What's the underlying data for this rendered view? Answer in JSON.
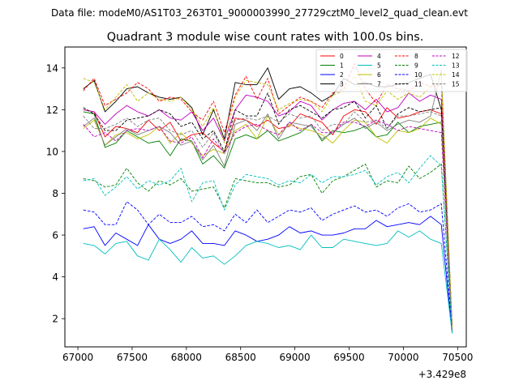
{
  "suptitle": "Data file: modeM0/AS1T03_263T01_9000003990_27729cztM0_level2_quad_clean.evt",
  "chart_data": {
    "type": "line",
    "title": "Quadrant 3 module wise count rates with 100.0s bins.",
    "xlabel": "",
    "ylabel": "",
    "x_offset_label": "+3.429e8",
    "xlim": [
      66880,
      70580
    ],
    "ylim": [
      0.65,
      15.0
    ],
    "xticks": [
      67000,
      67500,
      68000,
      68500,
      69000,
      69500,
      70000,
      70500
    ],
    "yticks": [
      2,
      4,
      6,
      8,
      10,
      12,
      14
    ],
    "x": [
      67050,
      67150,
      67250,
      67350,
      67450,
      67550,
      67650,
      67750,
      67850,
      67950,
      68050,
      68150,
      68250,
      68350,
      68450,
      68550,
      68650,
      68750,
      68850,
      68950,
      69050,
      69150,
      69250,
      69350,
      69450,
      69550,
      69650,
      69750,
      69850,
      69950,
      70050,
      70150,
      70250,
      70350,
      70450
    ],
    "legend": {
      "position": "top-right",
      "columns": 4
    },
    "series": [
      {
        "name": "0",
        "color": "#ff0000",
        "dash": "solid",
        "values": [
          12.0,
          11.9,
          10.7,
          11.2,
          11.1,
          10.9,
          11.5,
          11.0,
          11.4,
          10.5,
          10.8,
          10.9,
          10.4,
          10.0,
          11.6,
          11.5,
          11.2,
          11.5,
          11.1,
          11.2,
          11.8,
          11.6,
          11.4,
          10.8,
          11.7,
          12.0,
          11.9,
          11.3,
          12.1,
          11.6,
          11.7,
          11.9,
          12.0,
          11.8,
          1.6
        ]
      },
      {
        "name": "1",
        "color": "#008000",
        "dash": "solid",
        "values": [
          11.9,
          11.8,
          10.2,
          10.4,
          11.0,
          10.7,
          10.4,
          10.5,
          9.8,
          10.6,
          10.5,
          9.4,
          9.8,
          9.2,
          10.6,
          10.8,
          10.6,
          11.0,
          10.5,
          10.7,
          10.9,
          11.3,
          10.5,
          11.0,
          10.9,
          11.0,
          11.2,
          10.7,
          10.8,
          11.4,
          10.9,
          11.2,
          11.3,
          11.4,
          1.4
        ]
      },
      {
        "name": "2",
        "color": "#0000ff",
        "dash": "solid",
        "values": [
          6.3,
          6.4,
          5.5,
          6.1,
          5.8,
          5.5,
          6.5,
          5.8,
          5.6,
          5.8,
          6.2,
          5.6,
          5.6,
          5.5,
          6.2,
          6.0,
          5.7,
          5.8,
          6.0,
          6.4,
          6.1,
          6.2,
          6.0,
          6.0,
          6.1,
          6.3,
          6.3,
          6.7,
          6.4,
          6.5,
          6.6,
          6.5,
          6.9,
          6.5,
          1.3
        ]
      },
      {
        "name": "3",
        "color": "#000000",
        "dash": "solid",
        "values": [
          13.0,
          13.4,
          11.9,
          12.4,
          13.0,
          13.1,
          12.8,
          12.6,
          12.5,
          12.6,
          12.1,
          10.8,
          12.0,
          10.6,
          13.3,
          13.2,
          13.2,
          14.0,
          12.5,
          13.0,
          13.1,
          12.8,
          12.4,
          12.7,
          13.5,
          13.2,
          13.3,
          13.1,
          13.1,
          13.2,
          13.3,
          13.5,
          13.7,
          12.0,
          1.5
        ]
      },
      {
        "name": "4",
        "color": "#bf00bf",
        "dash": "solid",
        "values": [
          12.0,
          11.9,
          11.3,
          11.8,
          12.2,
          11.9,
          11.7,
          12.0,
          11.6,
          11.5,
          11.9,
          11.0,
          11.6,
          10.5,
          12.0,
          12.7,
          12.6,
          12.4,
          11.7,
          11.9,
          12.4,
          12.2,
          11.5,
          12.0,
          12.3,
          12.4,
          12.0,
          12.5,
          11.9,
          12.1,
          12.8,
          12.4,
          12.7,
          12.5,
          1.5
        ]
      },
      {
        "name": "5",
        "color": "#00bfbf",
        "dash": "solid",
        "values": [
          5.6,
          5.5,
          5.1,
          5.6,
          5.7,
          5.0,
          4.8,
          5.8,
          5.3,
          4.7,
          5.4,
          4.9,
          5.0,
          4.6,
          5.0,
          5.5,
          5.7,
          5.6,
          5.4,
          5.5,
          5.3,
          6.0,
          5.4,
          5.4,
          5.8,
          5.7,
          5.6,
          5.5,
          5.6,
          6.2,
          5.9,
          6.2,
          5.8,
          5.6,
          1.3
        ]
      },
      {
        "name": "6",
        "color": "#bfbf00",
        "dash": "solid",
        "values": [
          11.1,
          11.5,
          10.3,
          10.8,
          10.9,
          10.6,
          10.8,
          11.2,
          10.4,
          10.9,
          10.4,
          9.8,
          10.1,
          9.9,
          11.0,
          11.3,
          10.6,
          11.7,
          10.8,
          11.3,
          11.1,
          11.0,
          10.8,
          10.4,
          11.0,
          11.5,
          11.4,
          10.7,
          10.4,
          11.0,
          10.9,
          11.1,
          11.6,
          11.3,
          1.4
        ]
      },
      {
        "name": "7",
        "color": "#808080",
        "dash": "solid",
        "values": [
          11.2,
          11.6,
          10.3,
          10.7,
          11.1,
          10.8,
          11.0,
          11.2,
          10.9,
          10.3,
          10.5,
          9.6,
          10.3,
          9.3,
          11.3,
          11.5,
          11.0,
          11.8,
          10.6,
          11.4,
          11.3,
          11.2,
          10.6,
          10.9,
          11.3,
          11.6,
          11.1,
          11.4,
          11.0,
          11.3,
          11.5,
          11.4,
          11.7,
          13.9,
          1.5
        ]
      },
      {
        "name": "8",
        "color": "#ff0000",
        "dash": "dashed",
        "values": [
          12.9,
          13.5,
          12.2,
          12.5,
          12.8,
          13.3,
          13.0,
          12.4,
          12.6,
          12.5,
          11.9,
          11.5,
          12.4,
          10.9,
          12.7,
          13.6,
          12.5,
          13.5,
          11.8,
          12.2,
          12.6,
          12.4,
          12.1,
          12.8,
          13.0,
          14.2,
          13.0,
          12.3,
          13.2,
          13.0,
          12.9,
          13.3,
          13.1,
          13.2,
          1.6
        ]
      },
      {
        "name": "9",
        "color": "#008000",
        "dash": "dashed",
        "values": [
          8.7,
          8.6,
          8.3,
          8.4,
          9.2,
          8.5,
          8.1,
          8.6,
          8.4,
          8.7,
          8.1,
          8.2,
          8.3,
          7.3,
          8.7,
          8.6,
          8.5,
          8.5,
          8.3,
          8.4,
          8.8,
          8.9,
          8.0,
          8.6,
          8.8,
          9.1,
          9.4,
          8.3,
          8.6,
          8.5,
          9.3,
          8.7,
          9.0,
          9.4,
          1.4
        ]
      },
      {
        "name": "10",
        "color": "#0000ff",
        "dash": "dashed",
        "values": [
          7.2,
          7.1,
          6.5,
          6.5,
          7.6,
          7.2,
          6.5,
          7.0,
          6.6,
          6.6,
          6.9,
          6.4,
          6.5,
          6.2,
          7.0,
          6.6,
          7.2,
          6.6,
          6.9,
          7.2,
          7.1,
          7.3,
          6.7,
          7.0,
          7.2,
          7.4,
          7.1,
          7.2,
          6.9,
          7.3,
          7.5,
          7.1,
          7.2,
          7.5,
          1.4
        ]
      },
      {
        "name": "11",
        "color": "#000000",
        "dash": "dashed",
        "values": [
          12.1,
          11.8,
          11.0,
          11.0,
          11.5,
          11.6,
          11.7,
          12.0,
          11.8,
          11.2,
          11.4,
          10.6,
          11.0,
          10.0,
          12.0,
          11.7,
          11.7,
          12.8,
          11.3,
          12.0,
          12.2,
          11.9,
          11.6,
          12.0,
          12.1,
          12.4,
          11.6,
          12.2,
          11.1,
          11.8,
          12.1,
          11.9,
          12.0,
          12.1,
          1.5
        ]
      },
      {
        "name": "12",
        "color": "#bf00bf",
        "dash": "dashed",
        "values": [
          11.3,
          10.7,
          10.9,
          10.5,
          11.0,
          11.1,
          11.0,
          11.2,
          10.5,
          10.4,
          10.7,
          9.7,
          10.6,
          9.9,
          10.9,
          11.2,
          11.3,
          11.0,
          10.8,
          11.4,
          11.0,
          11.3,
          10.9,
          10.9,
          11.4,
          11.4,
          11.2,
          11.5,
          11.3,
          11.0,
          11.2,
          11.1,
          11.0,
          10.9,
          1.6
        ]
      },
      {
        "name": "13",
        "color": "#00bfbf",
        "dash": "dashed",
        "values": [
          8.6,
          8.7,
          7.9,
          8.3,
          8.8,
          8.2,
          8.6,
          8.4,
          8.6,
          9.2,
          7.6,
          8.5,
          8.6,
          7.2,
          8.4,
          8.9,
          8.8,
          8.7,
          8.4,
          8.6,
          8.5,
          8.9,
          8.5,
          8.8,
          8.8,
          8.9,
          9.1,
          8.4,
          8.8,
          9.0,
          8.5,
          9.2,
          9.8,
          9.3,
          1.4
        ]
      },
      {
        "name": "14",
        "color": "#bfbf00",
        "dash": "dashed",
        "values": [
          13.5,
          13.3,
          12.0,
          12.6,
          13.2,
          12.4,
          12.8,
          12.5,
          12.4,
          12.6,
          12.0,
          11.2,
          12.1,
          10.4,
          12.6,
          13.4,
          13.3,
          13.2,
          12.0,
          12.3,
          12.5,
          12.4,
          11.9,
          12.7,
          12.9,
          13.6,
          12.4,
          12.2,
          12.9,
          12.5,
          12.8,
          12.6,
          13.1,
          13.6,
          1.6
        ]
      },
      {
        "name": "15",
        "color": "#808080",
        "dash": "dashed",
        "values": [
          11.7,
          11.1,
          11.1,
          11.3,
          11.6,
          11.2,
          11.5,
          11.6,
          11.0,
          10.8,
          11.0,
          10.2,
          10.9,
          9.9,
          11.5,
          11.6,
          11.5,
          11.7,
          11.4,
          11.8,
          11.6,
          11.7,
          11.0,
          11.3,
          11.3,
          11.9,
          11.4,
          11.5,
          11.1,
          11.7,
          11.7,
          11.8,
          11.9,
          11.7,
          1.5
        ]
      }
    ]
  }
}
